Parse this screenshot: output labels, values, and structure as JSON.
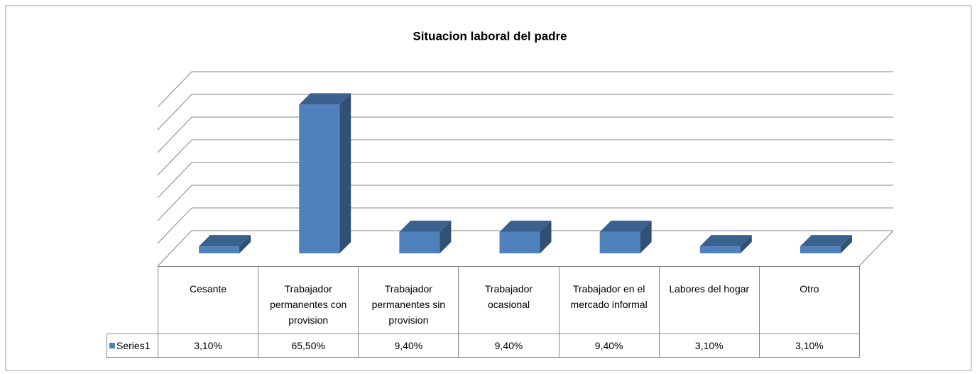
{
  "chart_data": {
    "type": "bar",
    "title": "Situacion laboral del padre",
    "categories": [
      "Cesante",
      "Trabajador permanentes con provision",
      "Trabajador permanentes sin provision",
      "Trabajador ocasional",
      "Trabajador en el mercado informal",
      "Labores del hogar",
      "Otro"
    ],
    "series": [
      {
        "name": "Series1",
        "color": "#4f81bd",
        "values": [
          3.1,
          65.5,
          9.4,
          9.4,
          9.4,
          3.1,
          3.1
        ],
        "value_labels": [
          "3,10%",
          "65,50%",
          "9,40%",
          "9,40%",
          "9,40%",
          "3,10%",
          "3,10%"
        ]
      }
    ],
    "ylim": [
      0,
      70
    ],
    "yticks": [
      0,
      10,
      20,
      30,
      40,
      50,
      60,
      70
    ],
    "grid": true,
    "legend": "table"
  }
}
